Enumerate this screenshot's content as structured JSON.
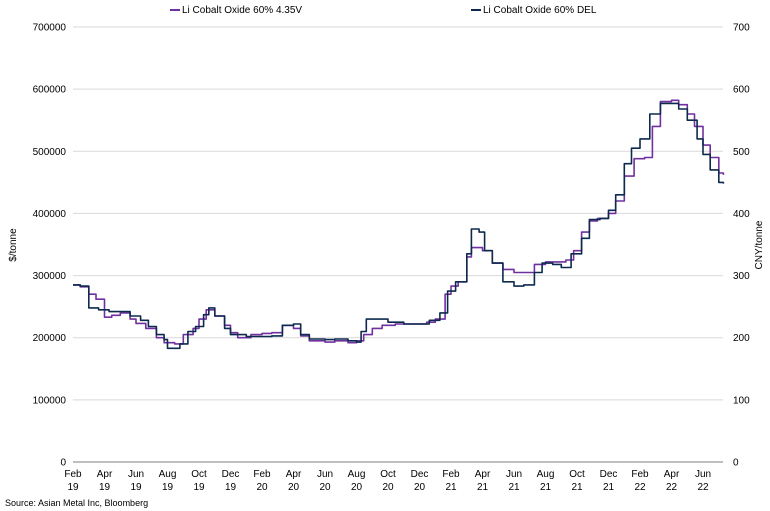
{
  "chart_data": {
    "type": "line",
    "legend_position": "top",
    "grid": "horizontal",
    "ylabel": "$/tonne",
    "y2label": "CNY/tonne",
    "ylim": [
      0,
      700000
    ],
    "y2lim": [
      0,
      700
    ],
    "y_ticks": [
      "0",
      "100000",
      "200000",
      "300000",
      "400000",
      "500000",
      "600000",
      "700000"
    ],
    "y2_ticks": [
      "0",
      "100",
      "200",
      "300",
      "400",
      "500",
      "600",
      "700"
    ],
    "x_ticks": [
      {
        "month": "Feb",
        "year": "19"
      },
      {
        "month": "Apr",
        "year": "19"
      },
      {
        "month": "Jun",
        "year": "19"
      },
      {
        "month": "Aug",
        "year": "19"
      },
      {
        "month": "Oct",
        "year": "19"
      },
      {
        "month": "Dec",
        "year": "19"
      },
      {
        "month": "Feb",
        "year": "20"
      },
      {
        "month": "Apr",
        "year": "20"
      },
      {
        "month": "Jun",
        "year": "20"
      },
      {
        "month": "Aug",
        "year": "20"
      },
      {
        "month": "Oct",
        "year": "20"
      },
      {
        "month": "Dec",
        "year": "20"
      },
      {
        "month": "Feb",
        "year": "21"
      },
      {
        "month": "Apr",
        "year": "21"
      },
      {
        "month": "Jun",
        "year": "21"
      },
      {
        "month": "Aug",
        "year": "21"
      },
      {
        "month": "Oct",
        "year": "21"
      },
      {
        "month": "Dec",
        "year": "21"
      },
      {
        "month": "Feb",
        "year": "22"
      },
      {
        "month": "Apr",
        "year": "22"
      },
      {
        "month": "Jun",
        "year": "22"
      }
    ],
    "x_range": [
      "2019-02",
      "2022-07"
    ],
    "series": [
      {
        "name": "Li Cobalt Oxide 60% 4.35V",
        "color": "#7030a0",
        "axis": "left",
        "points": [
          [
            "2019-02-01",
            285000
          ],
          [
            "2019-02-15",
            282000
          ],
          [
            "2019-03-01",
            270000
          ],
          [
            "2019-03-15",
            262000
          ],
          [
            "2019-04-01",
            233000
          ],
          [
            "2019-04-15",
            236000
          ],
          [
            "2019-05-01",
            240000
          ],
          [
            "2019-05-20",
            230000
          ],
          [
            "2019-06-01",
            223000
          ],
          [
            "2019-06-20",
            215000
          ],
          [
            "2019-07-10",
            200000
          ],
          [
            "2019-07-25",
            192000
          ],
          [
            "2019-08-15",
            190000
          ],
          [
            "2019-09-01",
            205000
          ],
          [
            "2019-09-20",
            215000
          ],
          [
            "2019-10-01",
            230000
          ],
          [
            "2019-10-15",
            245000
          ],
          [
            "2019-11-01",
            235000
          ],
          [
            "2019-11-20",
            220000
          ],
          [
            "2019-12-01",
            208000
          ],
          [
            "2019-12-15",
            200000
          ],
          [
            "2020-01-10",
            205000
          ],
          [
            "2020-02-01",
            207000
          ],
          [
            "2020-02-20",
            208000
          ],
          [
            "2020-03-10",
            220000
          ],
          [
            "2020-04-01",
            215000
          ],
          [
            "2020-04-15",
            203000
          ],
          [
            "2020-05-01",
            195000
          ],
          [
            "2020-06-01",
            193000
          ],
          [
            "2020-06-20",
            195000
          ],
          [
            "2020-07-15",
            192000
          ],
          [
            "2020-08-01",
            195000
          ],
          [
            "2020-08-15",
            205000
          ],
          [
            "2020-09-01",
            215000
          ],
          [
            "2020-09-20",
            220000
          ],
          [
            "2020-10-15",
            222000
          ],
          [
            "2020-11-15",
            222000
          ],
          [
            "2020-12-15",
            225000
          ],
          [
            "2021-01-01",
            230000
          ],
          [
            "2021-01-20",
            270000
          ],
          [
            "2021-02-01",
            283000
          ],
          [
            "2021-02-15",
            290000
          ],
          [
            "2021-03-01",
            330000
          ],
          [
            "2021-03-10",
            345000
          ],
          [
            "2021-04-01",
            340000
          ],
          [
            "2021-04-20",
            320000
          ],
          [
            "2021-05-10",
            310000
          ],
          [
            "2021-06-01",
            305000
          ],
          [
            "2021-06-25",
            305000
          ],
          [
            "2021-07-10",
            318000
          ],
          [
            "2021-08-01",
            322000
          ],
          [
            "2021-08-20",
            322000
          ],
          [
            "2021-09-10",
            325000
          ],
          [
            "2021-09-25",
            340000
          ],
          [
            "2021-10-10",
            370000
          ],
          [
            "2021-10-25",
            388000
          ],
          [
            "2021-11-10",
            392000
          ],
          [
            "2021-12-01",
            400000
          ],
          [
            "2021-12-15",
            420000
          ],
          [
            "2022-01-01",
            460000
          ],
          [
            "2022-01-20",
            488000
          ],
          [
            "2022-02-10",
            490000
          ],
          [
            "2022-02-25",
            540000
          ],
          [
            "2022-03-10",
            580000
          ],
          [
            "2022-04-01",
            582000
          ],
          [
            "2022-04-15",
            575000
          ],
          [
            "2022-05-01",
            560000
          ],
          [
            "2022-05-15",
            540000
          ],
          [
            "2022-06-01",
            510000
          ],
          [
            "2022-06-15",
            490000
          ],
          [
            "2022-07-01",
            465000
          ],
          [
            "2022-07-10",
            462000
          ]
        ]
      },
      {
        "name": "Li Cobalt Oxide 60% DEL",
        "color": "#0d2a4e",
        "axis": "left",
        "points": [
          [
            "2019-02-01",
            285000
          ],
          [
            "2019-02-15",
            283000
          ],
          [
            "2019-03-01",
            248000
          ],
          [
            "2019-03-20",
            245000
          ],
          [
            "2019-04-10",
            242000
          ],
          [
            "2019-05-01",
            242000
          ],
          [
            "2019-05-20",
            235000
          ],
          [
            "2019-06-10",
            228000
          ],
          [
            "2019-06-25",
            218000
          ],
          [
            "2019-07-10",
            205000
          ],
          [
            "2019-07-25",
            197000
          ],
          [
            "2019-08-01",
            183000
          ],
          [
            "2019-08-25",
            190000
          ],
          [
            "2019-09-10",
            210000
          ],
          [
            "2019-09-25",
            218000
          ],
          [
            "2019-10-10",
            237000
          ],
          [
            "2019-10-20",
            248000
          ],
          [
            "2019-11-01",
            235000
          ],
          [
            "2019-11-20",
            215000
          ],
          [
            "2019-12-01",
            205000
          ],
          [
            "2020-01-01",
            202000
          ],
          [
            "2020-02-01",
            202000
          ],
          [
            "2020-02-20",
            203000
          ],
          [
            "2020-03-10",
            220000
          ],
          [
            "2020-04-01",
            222000
          ],
          [
            "2020-04-15",
            205000
          ],
          [
            "2020-05-01",
            198000
          ],
          [
            "2020-06-01",
            197000
          ],
          [
            "2020-06-20",
            198000
          ],
          [
            "2020-07-15",
            195000
          ],
          [
            "2020-08-01",
            193000
          ],
          [
            "2020-08-10",
            210000
          ],
          [
            "2020-08-20",
            230000
          ],
          [
            "2020-09-15",
            230000
          ],
          [
            "2020-10-01",
            225000
          ],
          [
            "2020-11-01",
            222000
          ],
          [
            "2020-12-01",
            222000
          ],
          [
            "2020-12-20",
            228000
          ],
          [
            "2021-01-10",
            240000
          ],
          [
            "2021-01-25",
            275000
          ],
          [
            "2021-02-10",
            290000
          ],
          [
            "2021-03-01",
            335000
          ],
          [
            "2021-03-10",
            375000
          ],
          [
            "2021-03-25",
            370000
          ],
          [
            "2021-04-05",
            340000
          ],
          [
            "2021-04-20",
            320000
          ],
          [
            "2021-05-10",
            290000
          ],
          [
            "2021-06-01",
            283000
          ],
          [
            "2021-06-20",
            285000
          ],
          [
            "2021-07-10",
            305000
          ],
          [
            "2021-07-25",
            320000
          ],
          [
            "2021-08-15",
            318000
          ],
          [
            "2021-09-01",
            313000
          ],
          [
            "2021-09-20",
            335000
          ],
          [
            "2021-10-10",
            360000
          ],
          [
            "2021-10-25",
            390000
          ],
          [
            "2021-11-15",
            392000
          ],
          [
            "2021-12-01",
            405000
          ],
          [
            "2021-12-15",
            430000
          ],
          [
            "2022-01-01",
            480000
          ],
          [
            "2022-01-15",
            505000
          ],
          [
            "2022-02-01",
            520000
          ],
          [
            "2022-02-20",
            560000
          ],
          [
            "2022-03-10",
            577000
          ],
          [
            "2022-04-01",
            577000
          ],
          [
            "2022-04-15",
            568000
          ],
          [
            "2022-05-01",
            550000
          ],
          [
            "2022-05-20",
            520000
          ],
          [
            "2022-06-01",
            495000
          ],
          [
            "2022-06-15",
            470000
          ],
          [
            "2022-07-01",
            450000
          ],
          [
            "2022-07-10",
            448000
          ]
        ]
      }
    ]
  },
  "footer": {
    "source": "Source: Asian Metal Inc, Bloomberg"
  }
}
